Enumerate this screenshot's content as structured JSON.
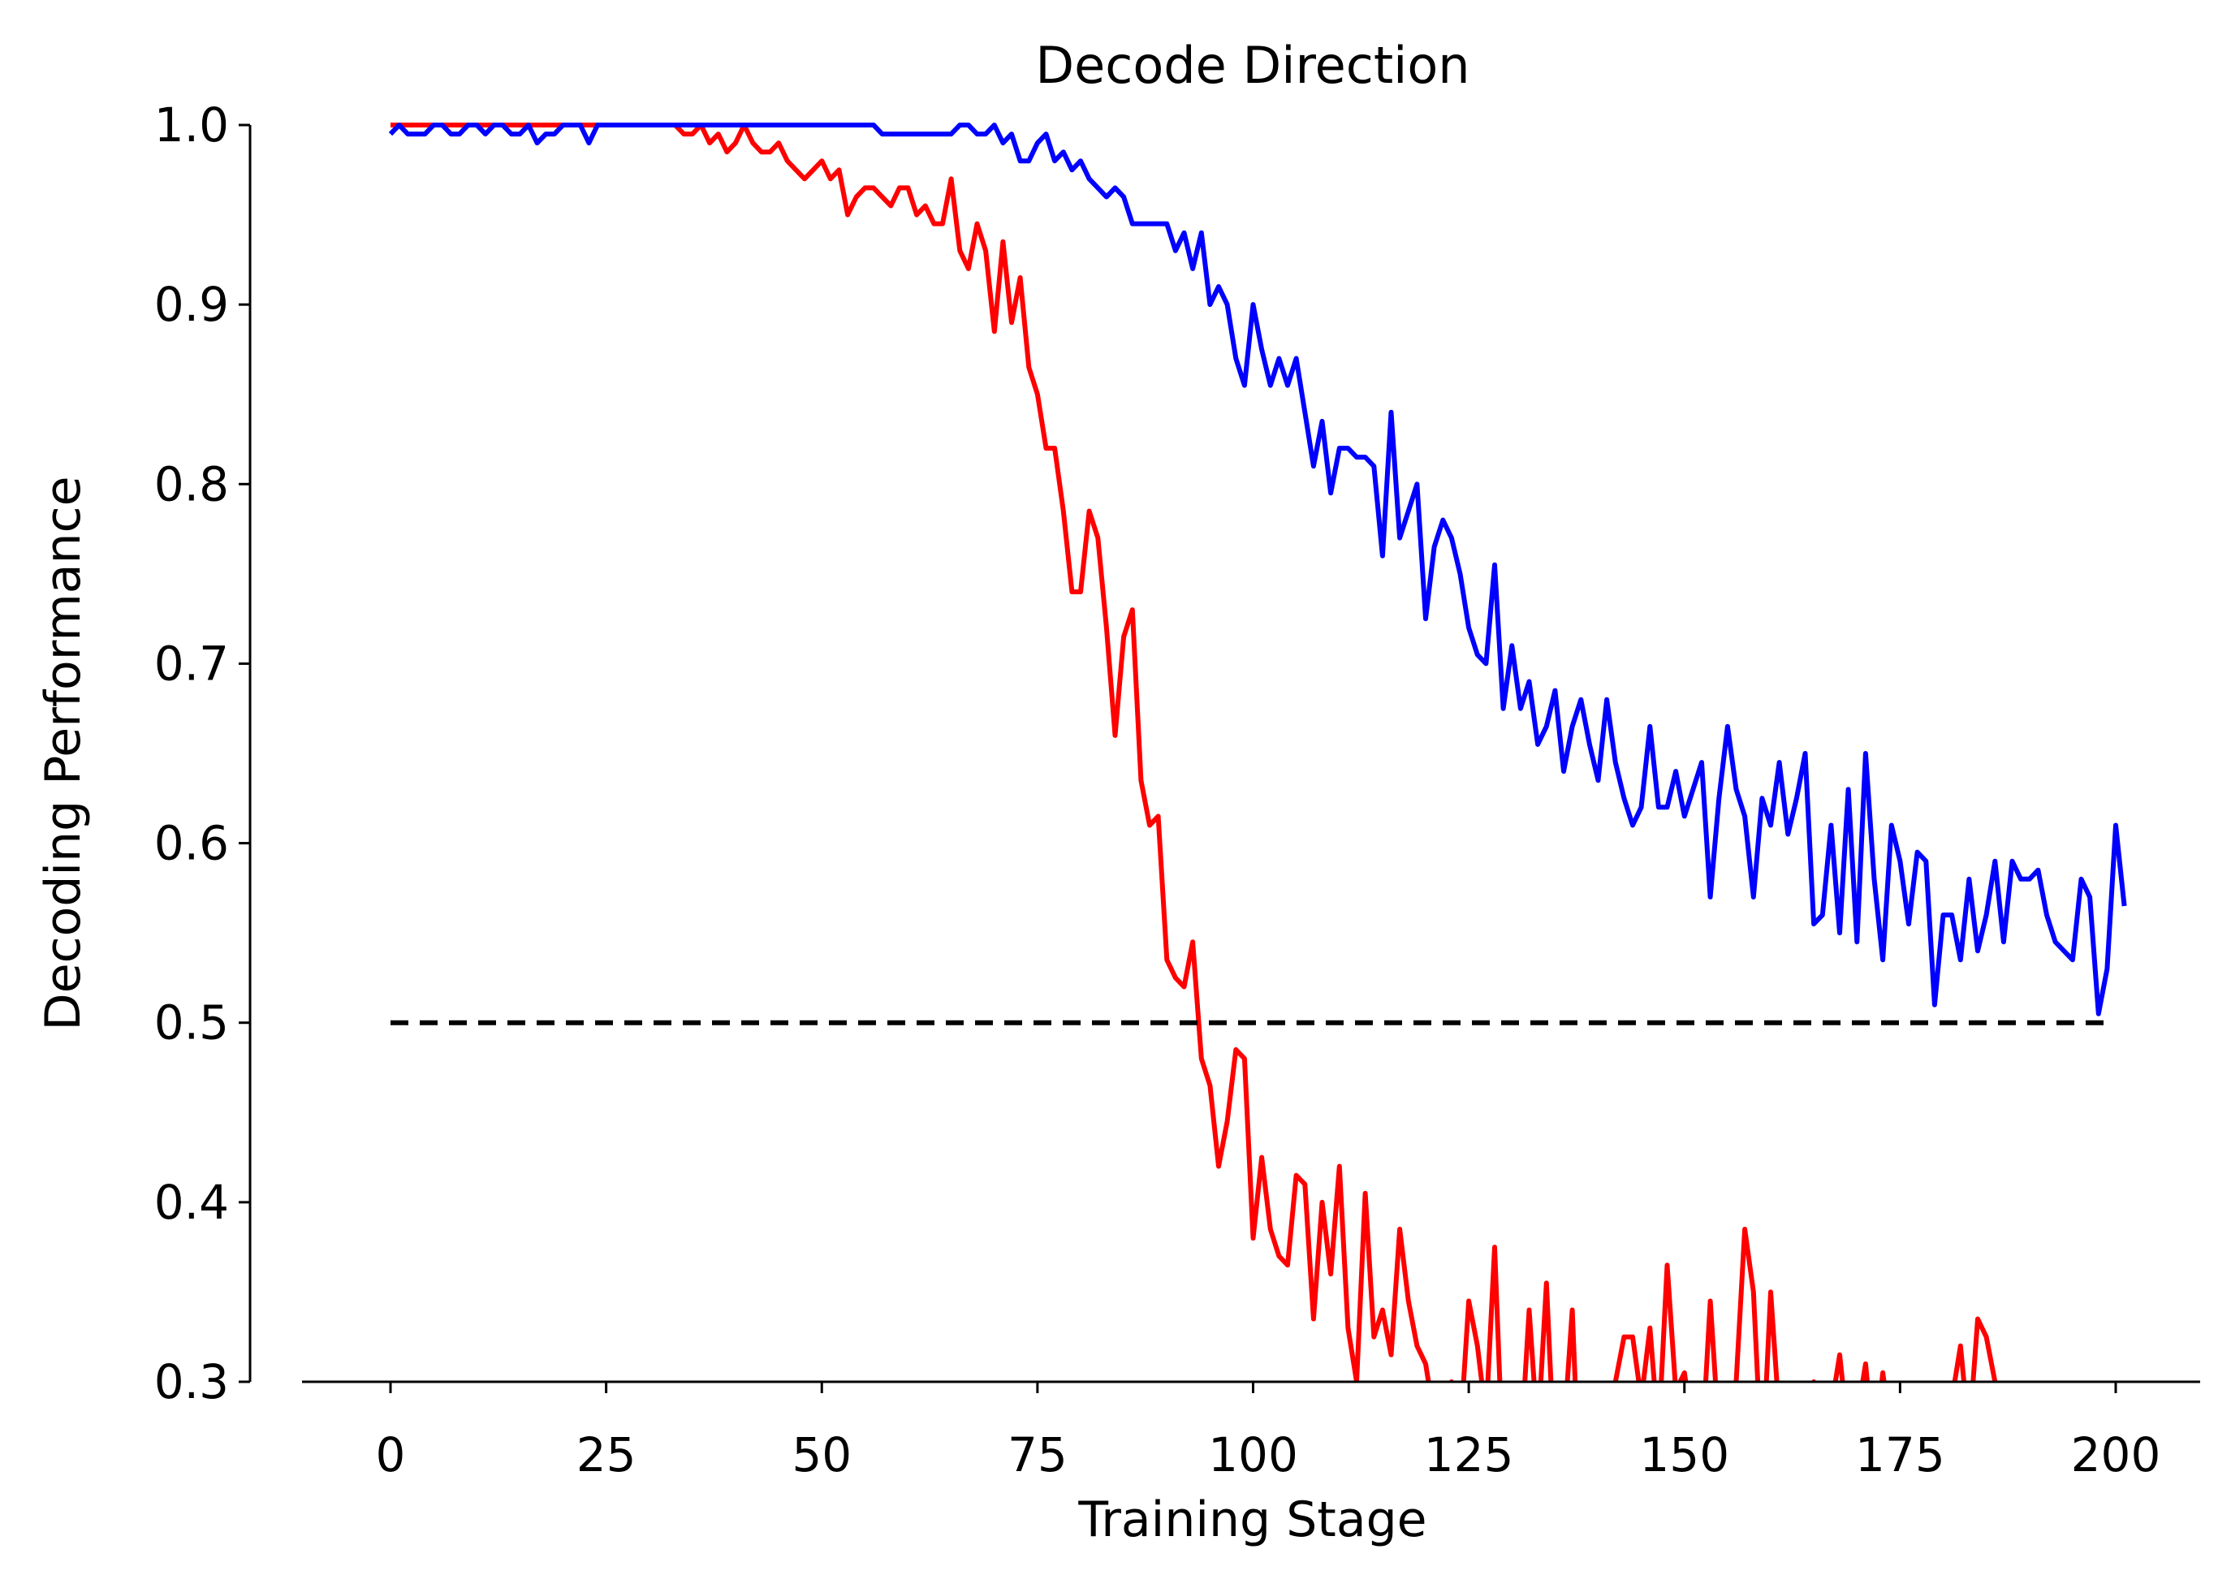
{
  "chart_data": {
    "type": "line",
    "title": "Decode Direction",
    "xlabel": "Training Stage",
    "ylabel": "Decoding Performance",
    "xlim": [
      -10,
      210
    ],
    "ylim": [
      0.3,
      1.0
    ],
    "xticks": [
      0,
      25,
      50,
      75,
      100,
      125,
      150,
      175,
      200
    ],
    "yticks": [
      0.3,
      0.4,
      0.5,
      0.6,
      0.7,
      0.8,
      0.9,
      1.0
    ],
    "xtick_labels": [
      "0",
      "25",
      "50",
      "75",
      "100",
      "125",
      "150",
      "175",
      "200"
    ],
    "ytick_labels": [
      "0.3",
      "0.4",
      "0.5",
      "0.6",
      "0.7",
      "0.8",
      "0.9",
      "1.0"
    ],
    "grid": false,
    "legend": "none",
    "reference_line": {
      "y": 0.5,
      "x": [
        0,
        199
      ],
      "style": "dashed",
      "color": "#000000"
    },
    "series": [
      {
        "color": "#0000ff",
        "x_start": 0,
        "x_step": 1,
        "values": [
          0.995,
          1.0,
          0.995,
          0.995,
          0.995,
          1.0,
          1.0,
          0.995,
          0.995,
          1.0,
          1.0,
          0.995,
          1.0,
          1.0,
          0.995,
          0.995,
          1.0,
          0.99,
          0.995,
          0.995,
          1.0,
          1.0,
          1.0,
          0.99,
          1.0,
          1.0,
          1.0,
          1.0,
          1.0,
          1.0,
          1.0,
          1.0,
          1.0,
          1.0,
          1.0,
          1.0,
          1.0,
          1.0,
          1.0,
          1.0,
          1.0,
          1.0,
          1.0,
          1.0,
          1.0,
          1.0,
          1.0,
          1.0,
          1.0,
          1.0,
          1.0,
          1.0,
          1.0,
          1.0,
          1.0,
          1.0,
          1.0,
          0.995,
          0.995,
          0.995,
          0.995,
          0.995,
          0.995,
          0.995,
          0.995,
          0.995,
          1.0,
          1.0,
          0.995,
          0.995,
          1.0,
          0.99,
          0.995,
          0.98,
          0.98,
          0.99,
          0.995,
          0.98,
          0.985,
          0.975,
          0.98,
          0.97,
          0.965,
          0.96,
          0.965,
          0.96,
          0.945,
          0.945,
          0.945,
          0.945,
          0.945,
          0.93,
          0.94,
          0.92,
          0.94,
          0.9,
          0.91,
          0.9,
          0.87,
          0.855,
          0.9,
          0.875,
          0.855,
          0.87,
          0.855,
          0.87,
          0.84,
          0.81,
          0.835,
          0.795,
          0.82,
          0.82,
          0.815,
          0.815,
          0.81,
          0.76,
          0.84,
          0.77,
          0.785,
          0.8,
          0.725,
          0.765,
          0.78,
          0.77,
          0.75,
          0.72,
          0.705,
          0.7,
          0.755,
          0.675,
          0.71,
          0.675,
          0.69,
          0.655,
          0.665,
          0.685,
          0.64,
          0.665,
          0.68,
          0.655,
          0.635,
          0.68,
          0.645,
          0.625,
          0.61,
          0.62,
          0.665,
          0.62,
          0.62,
          0.64,
          0.615,
          0.63,
          0.645,
          0.57,
          0.625,
          0.665,
          0.63,
          0.615,
          0.57,
          0.625,
          0.61,
          0.645,
          0.605,
          0.625,
          0.65,
          0.555,
          0.56,
          0.61,
          0.55,
          0.63,
          0.545,
          0.65,
          0.58,
          0.535,
          0.61,
          0.59,
          0.555,
          0.595,
          0.59,
          0.51,
          0.56,
          0.56,
          0.535,
          0.58,
          0.54,
          0.56,
          0.59,
          0.545,
          0.59,
          0.58,
          0.58,
          0.585,
          0.56,
          0.545,
          0.54,
          0.535,
          0.58,
          0.57,
          0.505,
          0.53,
          0.61,
          0.565
        ]
      },
      {
        "color": "#ff0000",
        "x_start": 0,
        "x_step": 1,
        "values": [
          1.0,
          1.0,
          1.0,
          1.0,
          1.0,
          1.0,
          1.0,
          1.0,
          1.0,
          1.0,
          1.0,
          1.0,
          1.0,
          1.0,
          1.0,
          1.0,
          1.0,
          1.0,
          1.0,
          1.0,
          1.0,
          1.0,
          1.0,
          1.0,
          1.0,
          1.0,
          1.0,
          1.0,
          1.0,
          1.0,
          1.0,
          1.0,
          1.0,
          1.0,
          0.995,
          0.995,
          1.0,
          0.99,
          0.995,
          0.985,
          0.99,
          1.0,
          0.99,
          0.985,
          0.985,
          0.99,
          0.98,
          0.975,
          0.97,
          0.975,
          0.98,
          0.97,
          0.975,
          0.95,
          0.96,
          0.965,
          0.965,
          0.96,
          0.955,
          0.965,
          0.965,
          0.95,
          0.955,
          0.945,
          0.945,
          0.97,
          0.93,
          0.92,
          0.945,
          0.93,
          0.885,
          0.935,
          0.89,
          0.915,
          0.865,
          0.85,
          0.82,
          0.82,
          0.785,
          0.74,
          0.74,
          0.785,
          0.77,
          0.72,
          0.66,
          0.715,
          0.73,
          0.635,
          0.61,
          0.615,
          0.535,
          0.525,
          0.52,
          0.545,
          0.48,
          0.465,
          0.42,
          0.445,
          0.485,
          0.48,
          0.38,
          0.425,
          0.385,
          0.37,
          0.365,
          0.415,
          0.41,
          0.335,
          0.4,
          0.36,
          0.42,
          0.33,
          0.3,
          0.405,
          0.325,
          0.34,
          0.315,
          0.385,
          0.345,
          0.32,
          0.31,
          0.28,
          0.29,
          0.3,
          0.27,
          0.345,
          0.32,
          0.28,
          0.375,
          0.25,
          0.27,
          0.26,
          0.34,
          0.27,
          0.355,
          0.25,
          0.27,
          0.34,
          0.22,
          0.26,
          0.27,
          0.28,
          0.3,
          0.325,
          0.325,
          0.29,
          0.33,
          0.27,
          0.365,
          0.295,
          0.305,
          0.27,
          0.26,
          0.345,
          0.27,
          0.29,
          0.3,
          0.385,
          0.35,
          0.25,
          0.35,
          0.28,
          0.29,
          0.25,
          0.27,
          0.3,
          0.29,
          0.285,
          0.315,
          0.27,
          0.28,
          0.31,
          0.26,
          0.305,
          0.27,
          0.28,
          0.25,
          0.29,
          0.28,
          0.27,
          0.26,
          0.29,
          0.32,
          0.27,
          0.335,
          0.325,
          0.3,
          0.27,
          0.28,
          0.29,
          0.26,
          0.27,
          0.28,
          0.27,
          0.29,
          0.26,
          0.27,
          0.28
        ]
      }
    ]
  }
}
